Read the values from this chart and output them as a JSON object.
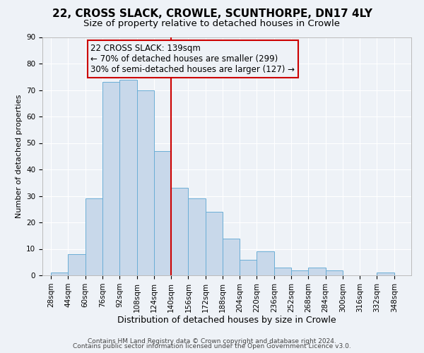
{
  "title": "22, CROSS SLACK, CROWLE, SCUNTHORPE, DN17 4LY",
  "subtitle": "Size of property relative to detached houses in Crowle",
  "xlabel": "Distribution of detached houses by size in Crowle",
  "ylabel": "Number of detached properties",
  "bin_edges": [
    28,
    44,
    60,
    76,
    92,
    108,
    124,
    140,
    156,
    172,
    188,
    204,
    220,
    236,
    252,
    268,
    284,
    300,
    316,
    332,
    348
  ],
  "bar_heights": [
    1,
    8,
    29,
    73,
    74,
    70,
    47,
    33,
    29,
    24,
    14,
    6,
    9,
    3,
    2,
    3,
    2,
    0,
    0,
    1
  ],
  "bar_color": "#c8d8ea",
  "bar_edge_color": "#6baed6",
  "vline_x": 140,
  "vline_color": "#cc0000",
  "ylim": [
    0,
    90
  ],
  "yticks": [
    0,
    10,
    20,
    30,
    40,
    50,
    60,
    70,
    80,
    90
  ],
  "annotation_title": "22 CROSS SLACK: 139sqm",
  "annotation_line1": "← 70% of detached houses are smaller (299)",
  "annotation_line2": "30% of semi-detached houses are larger (127) →",
  "annotation_box_color": "#cc0000",
  "footer1": "Contains HM Land Registry data © Crown copyright and database right 2024.",
  "footer2": "Contains public sector information licensed under the Open Government Licence v3.0.",
  "background_color": "#eef2f7",
  "grid_color": "#ffffff",
  "title_fontsize": 11,
  "subtitle_fontsize": 9.5,
  "xlabel_fontsize": 9,
  "ylabel_fontsize": 8,
  "tick_fontsize": 7.5,
  "annotation_fontsize": 8.5,
  "footer_fontsize": 6.5
}
